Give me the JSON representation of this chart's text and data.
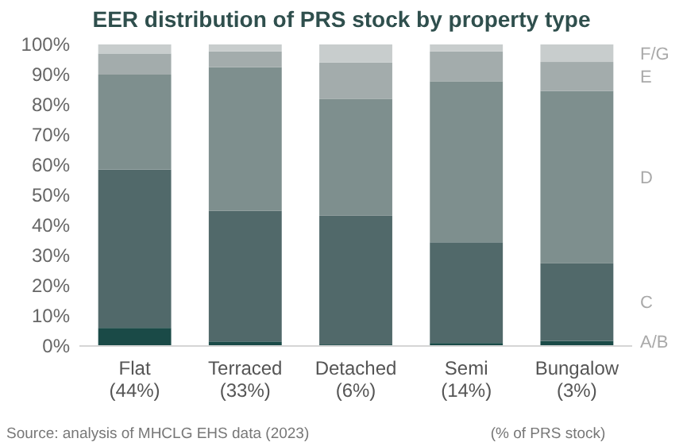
{
  "chart_data": {
    "type": "bar",
    "stacked": true,
    "title": "EER distribution of PRS stock by property type",
    "categories": [
      "Flat\n(44%)",
      "Terraced\n(33%)",
      "Detached\n(6%)",
      "Semi\n(14%)",
      "Bungalow\n(3%)"
    ],
    "series": [
      {
        "name": "A/B",
        "color": "#1a4a47",
        "values": [
          6,
          1.5,
          0.5,
          1,
          1.7
        ]
      },
      {
        "name": "C",
        "color": "#51696a",
        "values": [
          52.5,
          43.3,
          42.7,
          33.4,
          25.7
        ]
      },
      {
        "name": "D",
        "color": "#7e8f8e",
        "values": [
          31.5,
          47.7,
          38.8,
          53.4,
          57.2
        ]
      },
      {
        "name": "E",
        "color": "#a3acac",
        "values": [
          7,
          5.2,
          12,
          9.9,
          9.6
        ]
      },
      {
        "name": "F/G",
        "color": "#c8cdcd",
        "values": [
          3,
          2.3,
          6,
          2.3,
          5.8
        ]
      }
    ],
    "ylim": [
      0,
      100
    ],
    "yticks": [
      {
        "value": 0,
        "label": "0%"
      },
      {
        "value": 10,
        "label": "10%"
      },
      {
        "value": 20,
        "label": "20%"
      },
      {
        "value": 30,
        "label": "30%"
      },
      {
        "value": 40,
        "label": "40%"
      },
      {
        "value": 50,
        "label": "50%"
      },
      {
        "value": 60,
        "label": "60%"
      },
      {
        "value": 70,
        "label": "70%"
      },
      {
        "value": 80,
        "label": "80%"
      },
      {
        "value": 90,
        "label": "90%"
      },
      {
        "value": 100,
        "label": "100%"
      }
    ],
    "legend": "right",
    "annotations": [
      "Source: analysis of MHCLG EHS data (2023)",
      "(% of PRS stock)"
    ]
  }
}
